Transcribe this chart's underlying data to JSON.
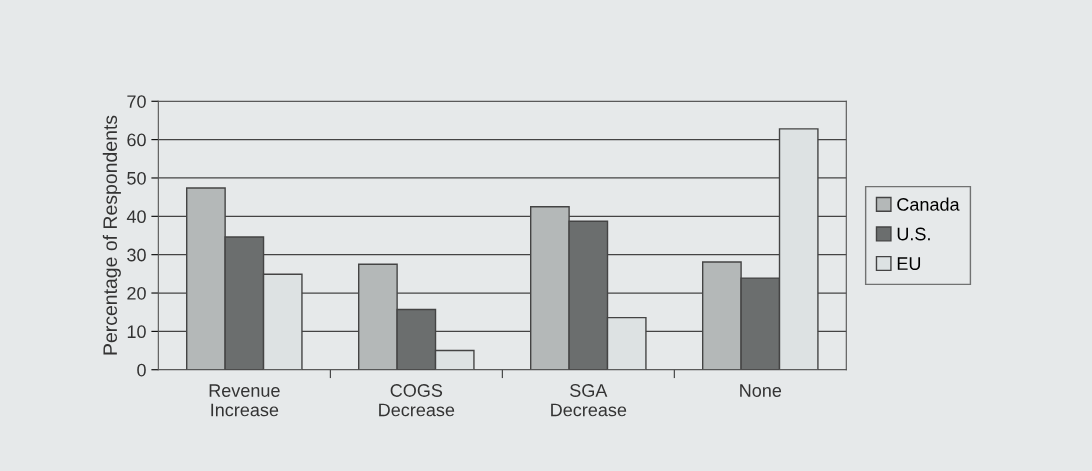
{
  "chart_data": {
    "type": "bar",
    "ylabel": "Percentage of Respondents",
    "categories": [
      "Revenue\nIncrease",
      "COGS\nDecrease",
      "SGA\nDecrease",
      "None"
    ],
    "series": [
      {
        "name": "Canada",
        "color": "#b4b8b8",
        "values": [
          47.4,
          27.5,
          42.5,
          28.1
        ]
      },
      {
        "name": "U.S.",
        "color": "#6b6e6e",
        "values": [
          34.6,
          15.7,
          38.7,
          23.9
        ]
      },
      {
        "name": "EU",
        "color": "#dde2e3",
        "values": [
          24.9,
          5.0,
          13.6,
          62.8
        ]
      }
    ],
    "ylim": [
      0,
      70
    ],
    "yticks": [
      0,
      10,
      20,
      30,
      40,
      50,
      60,
      70
    ],
    "grid": "y",
    "legend": "right"
  }
}
